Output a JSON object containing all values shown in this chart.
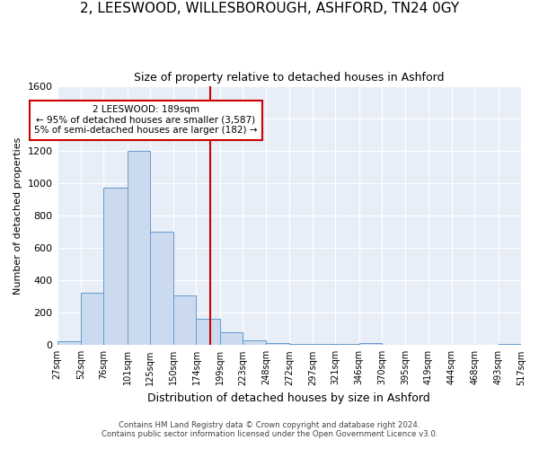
{
  "title1": "2, LEESWOOD, WILLESBOROUGH, ASHFORD, TN24 0GY",
  "title2": "Size of property relative to detached houses in Ashford",
  "xlabel": "Distribution of detached houses by size in Ashford",
  "ylabel": "Number of detached properties",
  "bar_edges": [
    27,
    52,
    76,
    101,
    125,
    150,
    174,
    199,
    223,
    248,
    272,
    297,
    321,
    346,
    370,
    395,
    419,
    444,
    468,
    493,
    517
  ],
  "bar_heights": [
    25,
    325,
    970,
    1200,
    700,
    305,
    160,
    80,
    30,
    15,
    10,
    10,
    10,
    15,
    0,
    0,
    0,
    0,
    0,
    10
  ],
  "bar_color": "#ccdaf0",
  "bar_edge_color": "#6699cc",
  "vline_x": 189,
  "vline_color": "#cc0000",
  "annotation_text": "2 LEESWOOD: 189sqm\n← 95% of detached houses are smaller (3,587)\n5% of semi-detached houses are larger (182) →",
  "annotation_box_edgecolor": "#cc0000",
  "annotation_box_facecolor": "#ffffff",
  "footnote1": "Contains HM Land Registry data © Crown copyright and database right 2024.",
  "footnote2": "Contains public sector information licensed under the Open Government Licence v3.0.",
  "bg_color": "#ffffff",
  "plot_bg_color": "#e8eef8",
  "grid_color": "#ffffff",
  "ylim": [
    0,
    1600
  ],
  "yticks": [
    0,
    200,
    400,
    600,
    800,
    1000,
    1200,
    1400,
    1600
  ],
  "tick_labels": [
    "27sqm",
    "52sqm",
    "76sqm",
    "101sqm",
    "125sqm",
    "150sqm",
    "174sqm",
    "199sqm",
    "223sqm",
    "248sqm",
    "272sqm",
    "297sqm",
    "321sqm",
    "346sqm",
    "370sqm",
    "395sqm",
    "419sqm",
    "444sqm",
    "468sqm",
    "493sqm",
    "517sqm"
  ]
}
